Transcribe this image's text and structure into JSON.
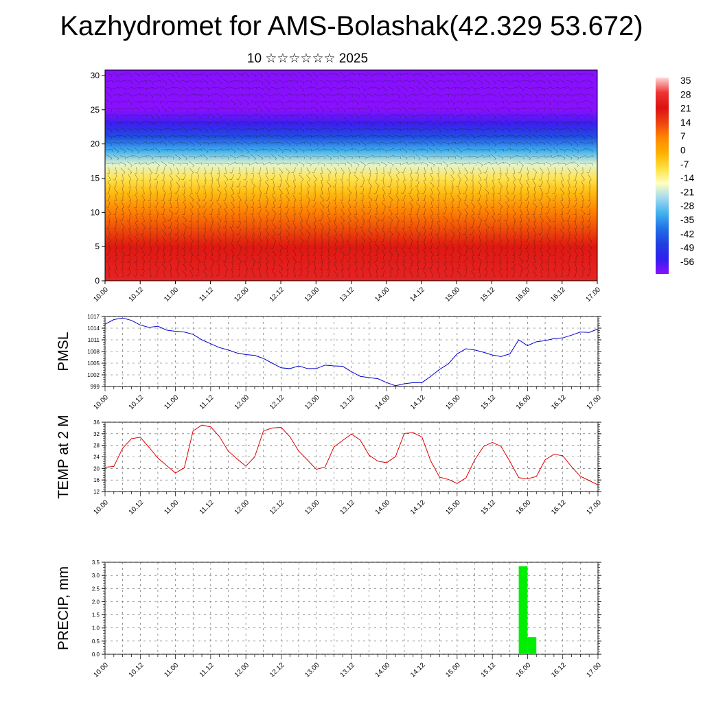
{
  "title": "Kazhydromet for AMS-Bolashak(42.329 53.672)",
  "subtitle": "10 ☆☆☆☆☆☆ 2025",
  "x_tick_labels": [
    "10.00",
    "10.12",
    "11.00",
    "11.12",
    "12.00",
    "12.12",
    "13.00",
    "13.12",
    "14.00",
    "14.12",
    "15.00",
    "15.12",
    "16.00",
    "16.12",
    "17.00"
  ],
  "colors": {
    "pmsl_line": "#0000cc",
    "temp_line": "#dd0000",
    "precip_bar": "#00ee00"
  },
  "colorbar": {
    "labels": [
      "35",
      "28",
      "21",
      "14",
      "7",
      "0",
      "-7",
      "-14",
      "-21",
      "-28",
      "-35",
      "-42",
      "-49",
      "-56"
    ],
    "stops": [
      "#ffd8d8",
      "#ee3333",
      "#dd1111",
      "#ee4411",
      "#ff8800",
      "#ffb000",
      "#ffe040",
      "#ffffc0",
      "#a0d8f0",
      "#40b0ee",
      "#2070e8",
      "#2040e0",
      "#3020ee",
      "#8810ff"
    ]
  },
  "chart_data": [
    {
      "type": "heatmap",
      "title": "",
      "ylabel": "",
      "x_ticks": [
        "10.00",
        "10.12",
        "11.00",
        "11.12",
        "12.00",
        "12.12",
        "13.00",
        "13.12",
        "14.00",
        "14.12",
        "15.00",
        "15.12",
        "16.00",
        "16.12",
        "17.00"
      ],
      "y_ticks": [
        0,
        5,
        10,
        15,
        20,
        25,
        30
      ],
      "ylim": [
        0,
        30.8
      ],
      "value_range": [
        -56,
        35
      ],
      "vertical_profile": [
        {
          "level": 0,
          "value": 25
        },
        {
          "level": 5,
          "value": 20
        },
        {
          "level": 10,
          "value": 8
        },
        {
          "level": 13,
          "value": -2
        },
        {
          "level": 15,
          "value": -8
        },
        {
          "level": 17,
          "value": -16
        },
        {
          "level": 19,
          "value": -28
        },
        {
          "level": 21,
          "value": -40
        },
        {
          "level": 23,
          "value": -50
        },
        {
          "level": 25,
          "value": -56
        },
        {
          "level": 28,
          "value": -56
        },
        {
          "level": 30.8,
          "value": -58
        }
      ],
      "overlay": "wind barbs"
    },
    {
      "type": "line",
      "ylabel": "PMSL",
      "ylim": [
        999,
        1017
      ],
      "y_ticks": [
        999,
        1002,
        1005,
        1008,
        1011,
        1014,
        1017
      ],
      "x_ticks": [
        "10.00",
        "10.12",
        "11.00",
        "11.12",
        "12.00",
        "12.12",
        "13.00",
        "13.12",
        "14.00",
        "14.12",
        "15.00",
        "15.12",
        "16.00",
        "16.12",
        "17.00"
      ],
      "series": [
        {
          "x": [
            0,
            3,
            6,
            9,
            12,
            15,
            18,
            21,
            24,
            27,
            30,
            33,
            36,
            39,
            42,
            45,
            48,
            51,
            54,
            57,
            60,
            63,
            66,
            69,
            72,
            75,
            78,
            81,
            84,
            87,
            90,
            93,
            96,
            99,
            102,
            105,
            108,
            111,
            114,
            117,
            120,
            123,
            126,
            129,
            132,
            135,
            138,
            141,
            144,
            147,
            150,
            153,
            156,
            159,
            162,
            165,
            168
          ],
          "y": [
            1015,
            1016.2,
            1016.6,
            1016,
            1014.8,
            1014.2,
            1014.5,
            1013.5,
            1013.2,
            1013,
            1012.4,
            1011,
            1010,
            1009,
            1008.4,
            1007.6,
            1007.2,
            1007,
            1006.2,
            1005,
            1003.8,
            1003.6,
            1004.3,
            1003.6,
            1003.6,
            1004.5,
            1004.3,
            1004.2,
            1002.8,
            1001.6,
            1001.3,
            1001,
            1000,
            999.2,
            999.7,
            1000,
            1000,
            1001.6,
            1003.4,
            1004.8,
            1007.4,
            1008.7,
            1008.4,
            1007.8,
            1007.1,
            1006.7,
            1007.4,
            1011,
            1009.5,
            1010.5,
            1010.8,
            1011.3,
            1011.5,
            1012.2,
            1013,
            1012.9,
            1013.8
          ]
        }
      ]
    },
    {
      "type": "line",
      "ylabel": "TEMP at 2 M",
      "ylim": [
        12,
        36
      ],
      "y_ticks": [
        12,
        16,
        20,
        24,
        28,
        32,
        36
      ],
      "x_ticks": [
        "10.00",
        "10.12",
        "11.00",
        "11.12",
        "12.00",
        "12.12",
        "13.00",
        "13.12",
        "14.00",
        "14.12",
        "15.00",
        "15.12",
        "16.00",
        "16.12",
        "17.00"
      ],
      "series": [
        {
          "x": [
            0,
            3,
            6,
            9,
            12,
            15,
            18,
            21,
            24,
            27,
            30,
            33,
            36,
            39,
            42,
            45,
            48,
            51,
            54,
            57,
            60,
            63,
            66,
            69,
            72,
            75,
            78,
            81,
            84,
            87,
            90,
            93,
            96,
            99,
            102,
            105,
            108,
            111,
            114,
            117,
            120,
            123,
            126,
            129,
            132,
            135,
            138,
            141,
            144,
            147,
            150,
            153,
            156,
            159,
            162,
            165,
            168
          ],
          "y": [
            20.4,
            20.7,
            27,
            30.3,
            30.8,
            27.3,
            23.6,
            21,
            18.4,
            20.2,
            33,
            35,
            34.4,
            31,
            26,
            23.3,
            20.8,
            24,
            33,
            34,
            34.2,
            31,
            26,
            22.9,
            19.7,
            20.5,
            27.4,
            29.7,
            31.9,
            29.8,
            24.6,
            22.5,
            22,
            24.1,
            32.1,
            32.4,
            30.9,
            22.6,
            17,
            16.2,
            14.8,
            16.7,
            23,
            27.6,
            29,
            27.6,
            22.4,
            16.8,
            16.4,
            17.2,
            23,
            24.9,
            24.4,
            20.6,
            17.3,
            15.8,
            14.3
          ]
        }
      ]
    },
    {
      "type": "bar",
      "ylabel": "PRECIP, mm",
      "ylim": [
        0,
        3.5
      ],
      "y_ticks": [
        "0.0",
        "0.5",
        "1.0",
        "1.5",
        "2.0",
        "2.5",
        "3.0",
        "3.5"
      ],
      "x_ticks": [
        "10.00",
        "10.12",
        "11.00",
        "11.12",
        "12.00",
        "12.12",
        "13.00",
        "13.12",
        "14.00",
        "14.12",
        "15.00",
        "15.12",
        "16.00",
        "16.12",
        "17.00"
      ],
      "bars": [
        {
          "x_start": 141,
          "x_end": 144,
          "value": 3.35
        },
        {
          "x_start": 144,
          "x_end": 147,
          "value": 0.65
        }
      ]
    }
  ]
}
